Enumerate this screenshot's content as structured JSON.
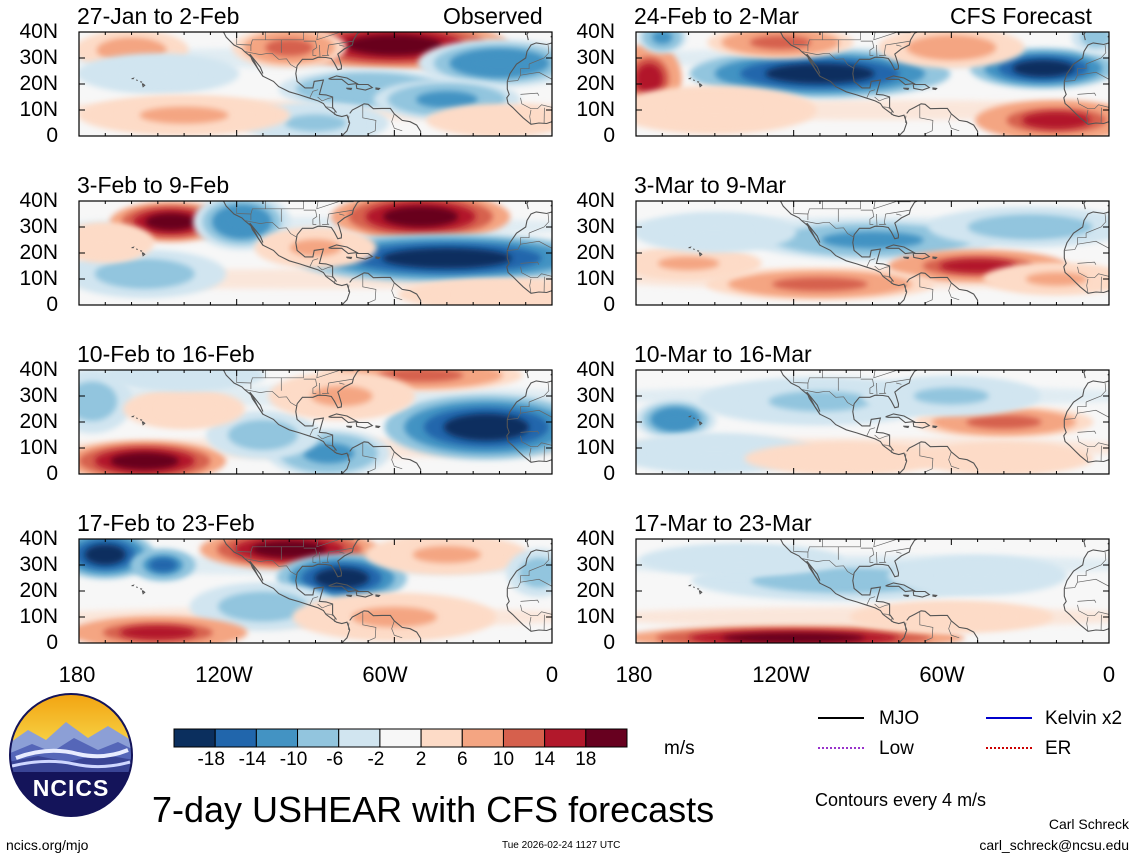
{
  "header": {
    "left_tag": "Observed",
    "right_tag": "CFS Forecast"
  },
  "panels": [
    {
      "col": 0,
      "row": 0,
      "period": "27-Jan to 2-Feb"
    },
    {
      "col": 0,
      "row": 1,
      "period": "3-Feb to 9-Feb"
    },
    {
      "col": 0,
      "row": 2,
      "period": "10-Feb to 16-Feb"
    },
    {
      "col": 0,
      "row": 3,
      "period": "17-Feb to 23-Feb"
    },
    {
      "col": 1,
      "row": 0,
      "period": "24-Feb to 2-Mar"
    },
    {
      "col": 1,
      "row": 1,
      "period": "3-Mar to 9-Mar"
    },
    {
      "col": 1,
      "row": 2,
      "period": "10-Mar to 16-Mar"
    },
    {
      "col": 1,
      "row": 3,
      "period": "17-Mar to 23-Mar"
    }
  ],
  "chart_data": {
    "type": "heatmap",
    "title": "7-day USHEAR with CFS forecasts",
    "variable": "USHEAR",
    "units": "m/s",
    "x_ticks": [
      "180",
      "120W",
      "60W",
      "0"
    ],
    "y_ticks": [
      "40N",
      "30N",
      "20N",
      "10N",
      "0"
    ],
    "lon_range": [
      -180,
      0
    ],
    "lat_range": [
      0,
      40
    ],
    "colorbar": {
      "levels": [
        -18,
        -14,
        -10,
        -6,
        -2,
        2,
        6,
        10,
        14,
        18
      ],
      "labels": [
        "-18",
        "-14",
        "-10",
        "-6",
        "-2",
        "2",
        "6",
        "10",
        "14",
        "18"
      ],
      "colors": [
        "#0b2f5e",
        "#2166ac",
        "#4393c3",
        "#92c5de",
        "#d1e5f0",
        "#f7f7f7",
        "#fddbc7",
        "#f4a582",
        "#d6604d",
        "#b2182b",
        "#67001f"
      ]
    },
    "fields": [
      {
        "period": "27-Jan to 2-Feb",
        "type": "observed",
        "blobs": [
          {
            "lon": -60,
            "lat": 35,
            "value": 18,
            "wx": 28,
            "wy": 6
          },
          {
            "lon": -100,
            "lat": 34,
            "value": 10,
            "wx": 14,
            "wy": 5
          },
          {
            "lon": -160,
            "lat": 33,
            "value": 8,
            "wx": 14,
            "wy": 5
          },
          {
            "lon": -150,
            "lat": 24,
            "value": -5,
            "wx": 20,
            "wy": 5
          },
          {
            "lon": -20,
            "lat": 28,
            "value": -14,
            "wx": 20,
            "wy": 6
          },
          {
            "lon": -70,
            "lat": 18,
            "value": -10,
            "wx": 22,
            "wy": 5
          },
          {
            "lon": -40,
            "lat": 14,
            "value": -12,
            "wx": 18,
            "wy": 5
          },
          {
            "lon": -90,
            "lat": 5,
            "value": -7,
            "wx": 18,
            "wy": 5
          },
          {
            "lon": -140,
            "lat": 8,
            "value": 6,
            "wx": 26,
            "wy": 5
          },
          {
            "lon": -20,
            "lat": 6,
            "value": 5,
            "wx": 18,
            "wy": 4
          }
        ]
      },
      {
        "period": "3-Feb to 9-Feb",
        "type": "observed",
        "blobs": [
          {
            "lon": -145,
            "lat": 32,
            "value": 18,
            "wx": 15,
            "wy": 5
          },
          {
            "lon": -50,
            "lat": 34,
            "value": 18,
            "wx": 22,
            "wy": 6
          },
          {
            "lon": -40,
            "lat": 18,
            "value": -19,
            "wx": 38,
            "wy": 6
          },
          {
            "lon": -118,
            "lat": 32,
            "value": -13,
            "wx": 12,
            "wy": 7
          },
          {
            "lon": -155,
            "lat": 12,
            "value": -9,
            "wx": 20,
            "wy": 6
          },
          {
            "lon": -90,
            "lat": 22,
            "value": 7,
            "wx": 15,
            "wy": 5
          },
          {
            "lon": -20,
            "lat": 4,
            "value": 5,
            "wx": 25,
            "wy": 4
          },
          {
            "lon": -170,
            "lat": 24,
            "value": 5,
            "wx": 12,
            "wy": 5
          }
        ]
      },
      {
        "period": "10-Feb to 16-Feb",
        "type": "observed",
        "blobs": [
          {
            "lon": -155,
            "lat": 5,
            "value": 18,
            "wx": 20,
            "wy": 5
          },
          {
            "lon": -25,
            "lat": 18,
            "value": -19,
            "wx": 25,
            "wy": 8
          },
          {
            "lon": -50,
            "lat": 38,
            "value": 12,
            "wx": 25,
            "wy": 4
          },
          {
            "lon": -85,
            "lat": 8,
            "value": -12,
            "wx": 15,
            "wy": 6
          },
          {
            "lon": -110,
            "lat": 15,
            "value": -8,
            "wx": 14,
            "wy": 6
          },
          {
            "lon": -175,
            "lat": 28,
            "value": -8,
            "wx": 10,
            "wy": 8
          },
          {
            "lon": -80,
            "lat": 30,
            "value": 6,
            "wx": 18,
            "wy": 6
          },
          {
            "lon": -140,
            "lat": 25,
            "value": 5,
            "wx": 15,
            "wy": 5
          },
          {
            "lon": -140,
            "lat": 38,
            "value": -4,
            "wx": 20,
            "wy": 4
          }
        ]
      },
      {
        "period": "17-Feb to 23-Feb",
        "type": "observed",
        "blobs": [
          {
            "lon": -170,
            "lat": 34,
            "value": -19,
            "wx": 12,
            "wy": 6
          },
          {
            "lon": -148,
            "lat": 30,
            "value": -15,
            "wx": 8,
            "wy": 4
          },
          {
            "lon": -100,
            "lat": 36,
            "value": 18,
            "wx": 22,
            "wy": 5
          },
          {
            "lon": -80,
            "lat": 25,
            "value": -19,
            "wx": 16,
            "wy": 6
          },
          {
            "lon": -110,
            "lat": 14,
            "value": -9,
            "wx": 18,
            "wy": 6
          },
          {
            "lon": -150,
            "lat": 4,
            "value": 15,
            "wx": 22,
            "wy": 4
          },
          {
            "lon": -60,
            "lat": 10,
            "value": 6,
            "wx": 25,
            "wy": 6
          },
          {
            "lon": -40,
            "lat": 34,
            "value": 6,
            "wx": 20,
            "wy": 5
          },
          {
            "lon": -5,
            "lat": 27,
            "value": -9,
            "wx": 8,
            "wy": 6
          }
        ]
      },
      {
        "period": "24-Feb to 2-Mar",
        "type": "forecast",
        "blobs": [
          {
            "lon": -110,
            "lat": 24,
            "value": -19,
            "wx": 32,
            "wy": 6
          },
          {
            "lon": -25,
            "lat": 26,
            "value": -19,
            "wx": 18,
            "wy": 5
          },
          {
            "lon": -175,
            "lat": 22,
            "value": 16,
            "wx": 8,
            "wy": 9
          },
          {
            "lon": -125,
            "lat": 36,
            "value": 12,
            "wx": 18,
            "wy": 4
          },
          {
            "lon": -60,
            "lat": 34,
            "value": 9,
            "wx": 18,
            "wy": 5
          },
          {
            "lon": -20,
            "lat": 6,
            "value": 16,
            "wx": 20,
            "wy": 5
          },
          {
            "lon": -170,
            "lat": 38,
            "value": -12,
            "wx": 6,
            "wy": 4
          },
          {
            "lon": -150,
            "lat": 10,
            "value": 5,
            "wx": 25,
            "wy": 6
          },
          {
            "lon": -5,
            "lat": 38,
            "value": -9,
            "wx": 6,
            "wy": 4
          }
        ]
      },
      {
        "period": "3-Mar to 9-Mar",
        "type": "forecast",
        "blobs": [
          {
            "lon": -90,
            "lat": 25,
            "value": -11,
            "wx": 30,
            "wy": 5
          },
          {
            "lon": -30,
            "lat": 30,
            "value": -8,
            "wx": 25,
            "wy": 5
          },
          {
            "lon": -50,
            "lat": 15,
            "value": 15,
            "wx": 22,
            "wy": 4
          },
          {
            "lon": -110,
            "lat": 8,
            "value": 10,
            "wx": 28,
            "wy": 4
          },
          {
            "lon": -160,
            "lat": 16,
            "value": 7,
            "wx": 18,
            "wy": 4
          },
          {
            "lon": -150,
            "lat": 28,
            "value": -5,
            "wx": 20,
            "wy": 5
          },
          {
            "lon": -20,
            "lat": 10,
            "value": 6,
            "wx": 18,
            "wy": 4
          }
        ]
      },
      {
        "period": "10-Mar to 16-Mar",
        "type": "forecast",
        "blobs": [
          {
            "lon": -165,
            "lat": 21,
            "value": -14,
            "wx": 10,
            "wy": 5
          },
          {
            "lon": -110,
            "lat": 28,
            "value": -7,
            "wx": 30,
            "wy": 6
          },
          {
            "lon": -40,
            "lat": 20,
            "value": 10,
            "wx": 22,
            "wy": 4
          },
          {
            "lon": -60,
            "lat": 30,
            "value": -7,
            "wx": 22,
            "wy": 5
          },
          {
            "lon": -150,
            "lat": 8,
            "value": -4,
            "wx": 25,
            "wy": 5
          },
          {
            "lon": -100,
            "lat": 6,
            "value": 4,
            "wx": 25,
            "wy": 4
          },
          {
            "lon": -40,
            "lat": 6,
            "value": 4,
            "wx": 22,
            "wy": 4
          }
        ]
      },
      {
        "period": "17-Mar to 23-Mar",
        "type": "forecast",
        "blobs": [
          {
            "lon": -120,
            "lat": 2,
            "value": 18,
            "wx": 42,
            "wy": 3
          },
          {
            "lon": -100,
            "lat": 24,
            "value": -8,
            "wx": 38,
            "wy": 5
          },
          {
            "lon": -50,
            "lat": 26,
            "value": -6,
            "wx": 22,
            "wy": 5
          },
          {
            "lon": -140,
            "lat": 32,
            "value": -4,
            "wx": 25,
            "wy": 4
          },
          {
            "lon": -60,
            "lat": 10,
            "value": 4,
            "wx": 25,
            "wy": 4
          }
        ]
      }
    ]
  },
  "axes": {
    "x_labels": [
      "180",
      "120W",
      "60W",
      "0",
      "180",
      "120W",
      "60W",
      "0"
    ]
  },
  "colorbar": {
    "units_label": "m/s"
  },
  "legend": {
    "items": [
      {
        "label": "MJO",
        "color": "#000000"
      },
      {
        "label": "Kelvin x2",
        "color": "#0000cc"
      },
      {
        "label": "Low",
        "color": "#9933cc"
      },
      {
        "label": "ER",
        "color": "#cc0000"
      }
    ],
    "contour_note": "Contours every 4 m/s"
  },
  "logo": {
    "text": "NCICS"
  },
  "footer": {
    "url": "ncics.org/mjo",
    "timestamp": "Tue 2026-02-24 1127 UTC",
    "author": "Carl Schreck",
    "email": "carl_schreck@ncsu.edu"
  }
}
